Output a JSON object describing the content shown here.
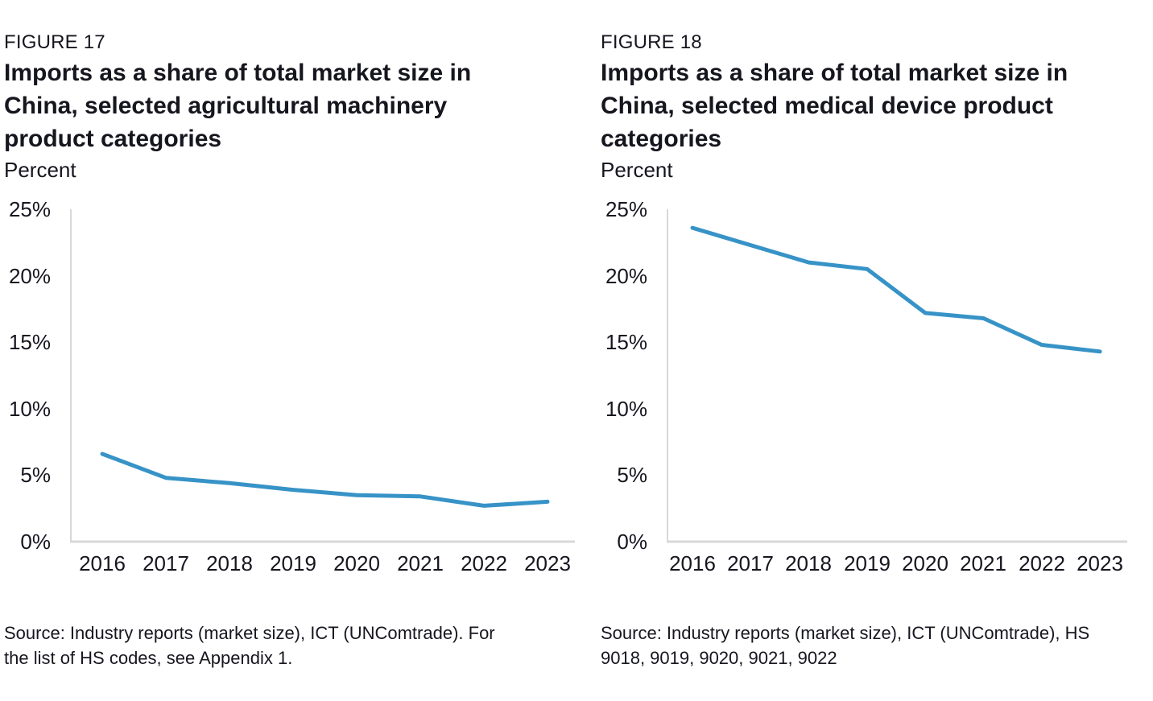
{
  "page": {
    "background": "#ffffff",
    "text_color": "#16161f"
  },
  "chart_data": [
    {
      "type": "line",
      "figure_label": "FIGURE 17",
      "title": "Imports as a share of total market size in China, selected agricultural machinery product categories",
      "title_lines": [
        "Imports as a share of total market size in",
        "China, selected agricultural machinery",
        "product categories"
      ],
      "ylabel": "Percent",
      "xlabel": "",
      "x": [
        "2016",
        "2017",
        "2018",
        "2019",
        "2020",
        "2021",
        "2022",
        "2023"
      ],
      "series": [
        {
          "name": "Imports as a share of total market size",
          "values": [
            6.6,
            4.8,
            4.4,
            3.9,
            3.5,
            3.4,
            2.7,
            3.0
          ]
        }
      ],
      "ylim": [
        0,
        25
      ],
      "ytick_values": [
        25,
        20,
        15,
        10,
        5,
        0
      ],
      "ytick_labels": [
        "25%",
        "20%",
        "15%",
        "10%",
        "5%",
        "0%"
      ],
      "grid": false,
      "legend": "none",
      "line_color": "#3793c7",
      "axis_color": "#d8d8d8",
      "source_lines": [
        "Source: Industry reports (market size), ICT (UNComtrade). For",
        "the list of HS codes, see Appendix 1."
      ]
    },
    {
      "type": "line",
      "figure_label": "FIGURE 18",
      "title": "Imports as a share of total market size in China, selected medical device product categories",
      "title_lines": [
        "Imports as a share of total market size in",
        "China, selected medical device product",
        "categories"
      ],
      "ylabel": "Percent",
      "xlabel": "",
      "x": [
        "2016",
        "2017",
        "2018",
        "2019",
        "2020",
        "2021",
        "2022",
        "2023"
      ],
      "series": [
        {
          "name": "Imports as a share of total market size",
          "values": [
            23.6,
            22.3,
            21.0,
            20.5,
            17.2,
            16.8,
            14.8,
            14.3
          ]
        }
      ],
      "ylim": [
        0,
        25
      ],
      "ytick_values": [
        25,
        20,
        15,
        10,
        5,
        0
      ],
      "ytick_labels": [
        "25%",
        "20%",
        "15%",
        "10%",
        "5%",
        "0%"
      ],
      "grid": false,
      "legend": "none",
      "line_color": "#3793c7",
      "axis_color": "#d8d8d8",
      "source_lines": [
        "Source: Industry reports (market size), ICT (UNComtrade), HS",
        "9018, 9019, 9020, 9021, 9022"
      ]
    }
  ]
}
